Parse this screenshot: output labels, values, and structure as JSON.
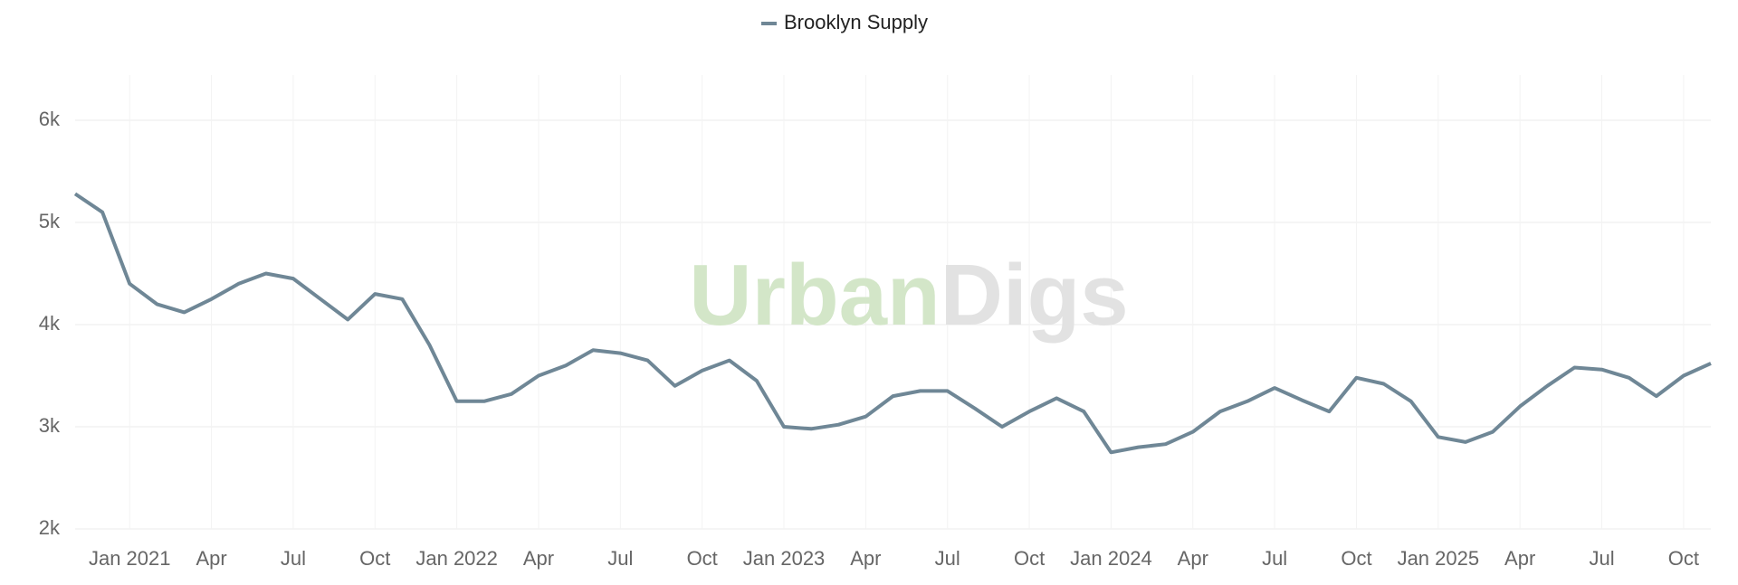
{
  "chart_data": {
    "type": "line",
    "legend_position": "top",
    "watermark": [
      "Urban",
      "Digs"
    ],
    "x": [
      "2020-11",
      "2020-12",
      "2021-01",
      "2021-02",
      "2021-03",
      "2021-04",
      "2021-05",
      "2021-06",
      "2021-07",
      "2021-08",
      "2021-09",
      "2021-10",
      "2021-11",
      "2021-12",
      "2022-01",
      "2022-02",
      "2022-03",
      "2022-04",
      "2022-05",
      "2022-06",
      "2022-07",
      "2022-08",
      "2022-09",
      "2022-10",
      "2022-11",
      "2022-12",
      "2023-01",
      "2023-02",
      "2023-03",
      "2023-04",
      "2023-05",
      "2023-06",
      "2023-07",
      "2023-08",
      "2023-09",
      "2023-10",
      "2023-11",
      "2023-12",
      "2024-01",
      "2024-02",
      "2024-03",
      "2024-04",
      "2024-05",
      "2024-06",
      "2024-07",
      "2024-08",
      "2024-09",
      "2024-10",
      "2024-11",
      "2024-12",
      "2025-01",
      "2025-02",
      "2025-03",
      "2025-04",
      "2025-05",
      "2025-06",
      "2025-07",
      "2025-08",
      "2025-09",
      "2025-10",
      "2025-11"
    ],
    "series": [
      {
        "name": "Brooklyn Supply",
        "color": "#6f8796",
        "values": [
          5280,
          5100,
          4400,
          4200,
          4120,
          4250,
          4400,
          4500,
          4450,
          4250,
          4050,
          4300,
          4250,
          3800,
          3250,
          3250,
          3320,
          3500,
          3600,
          3750,
          3720,
          3650,
          3400,
          3550,
          3650,
          3450,
          3000,
          2980,
          3020,
          3100,
          3300,
          3350,
          3350,
          3180,
          3000,
          3150,
          3280,
          3150,
          2750,
          2800,
          2830,
          2950,
          3150,
          3250,
          3380,
          3260,
          3150,
          3480,
          3420,
          3250,
          2900,
          2850,
          2950,
          3200,
          3400,
          3580,
          3560,
          3480,
          3300,
          3500,
          3620
        ]
      }
    ],
    "ylim": [
      2000,
      6000
    ],
    "yticks": [
      {
        "value": 2000,
        "label": "2k"
      },
      {
        "value": 3000,
        "label": "3k"
      },
      {
        "value": 4000,
        "label": "4k"
      },
      {
        "value": 5000,
        "label": "5k"
      },
      {
        "value": 6000,
        "label": "6k"
      }
    ],
    "xticks": [
      {
        "value": "2021-01",
        "label": "Jan 2021"
      },
      {
        "value": "2021-04",
        "label": "Apr"
      },
      {
        "value": "2021-07",
        "label": "Jul"
      },
      {
        "value": "2021-10",
        "label": "Oct"
      },
      {
        "value": "2022-01",
        "label": "Jan 2022"
      },
      {
        "value": "2022-04",
        "label": "Apr"
      },
      {
        "value": "2022-07",
        "label": "Jul"
      },
      {
        "value": "2022-10",
        "label": "Oct"
      },
      {
        "value": "2023-01",
        "label": "Jan 2023"
      },
      {
        "value": "2023-04",
        "label": "Apr"
      },
      {
        "value": "2023-07",
        "label": "Jul"
      },
      {
        "value": "2023-10",
        "label": "Oct"
      },
      {
        "value": "2024-01",
        "label": "Jan 2024"
      },
      {
        "value": "2024-04",
        "label": "Apr"
      },
      {
        "value": "2024-07",
        "label": "Jul"
      },
      {
        "value": "2024-10",
        "label": "Oct"
      },
      {
        "value": "2025-01",
        "label": "Jan 2025"
      },
      {
        "value": "2025-04",
        "label": "Apr"
      },
      {
        "value": "2025-07",
        "label": "Jul"
      },
      {
        "value": "2025-10",
        "label": "Oct"
      }
    ],
    "grid": true
  }
}
